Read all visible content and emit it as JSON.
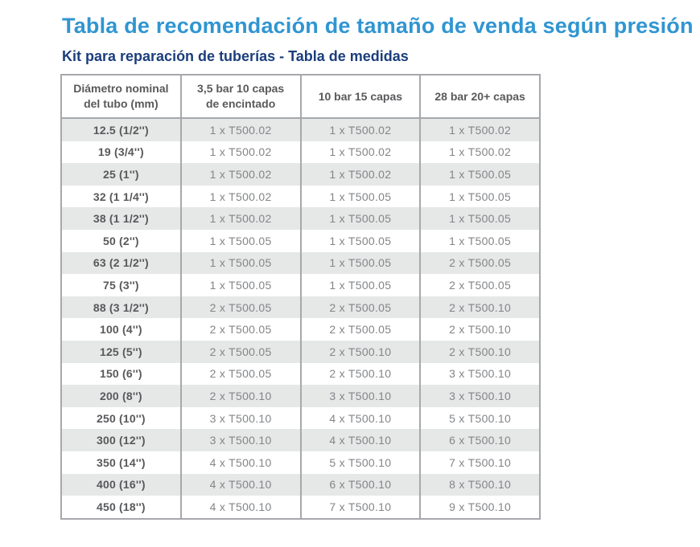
{
  "page": {
    "title": "Tabla de recomendación de tamaño de venda según presión",
    "subtitle": "Kit para reparación de tuberías - Tabla de medidas"
  },
  "colors": {
    "title": "#3095d2",
    "subtitle": "#1b3e7c",
    "header_text": "#58595b",
    "row_label_text": "#58595b",
    "cell_text": "#838588",
    "stripe": "#e6e7e7",
    "border": "#a6a8ab"
  },
  "table": {
    "columns": [
      "Diámetro nominal\ndel tubo (mm)",
      "3,5 bar  10 capas\nde encintado",
      "10 bar  15 capas",
      "28 bar 20+ capas"
    ],
    "rows": [
      {
        "label": "12.5 (1/2'')",
        "values": [
          "1 x T500.02",
          "1 x T500.02",
          "1 x T500.02"
        ]
      },
      {
        "label": "19 (3/4'')",
        "values": [
          "1 x T500.02",
          "1 x T500.02",
          "1 x T500.02"
        ]
      },
      {
        "label": "25 (1'')",
        "values": [
          "1 x T500.02",
          "1 x T500.02",
          "1 x T500.05"
        ]
      },
      {
        "label": "32 (1 1/4'')",
        "values": [
          "1 x T500.02",
          "1 x T500.05",
          "1 x T500.05"
        ]
      },
      {
        "label": "38 (1 1/2'')",
        "values": [
          "1 x T500.02",
          "1 x T500.05",
          "1 x T500.05"
        ]
      },
      {
        "label": "50 (2'')",
        "values": [
          "1 x T500.05",
          "1 x T500.05",
          "1 x T500.05"
        ]
      },
      {
        "label": "63 (2 1/2'')",
        "values": [
          "1 x T500.05",
          "1 x T500.05",
          "2 x T500.05"
        ]
      },
      {
        "label": "75 (3'')",
        "values": [
          "1 x T500.05",
          "1 x T500.05",
          "2 x T500.05"
        ]
      },
      {
        "label": "88 (3 1/2'')",
        "values": [
          "2 x T500.05",
          "2 x T500.05",
          "2 x T500.10"
        ]
      },
      {
        "label": "100 (4'')",
        "values": [
          "2 x T500.05",
          "2 x T500.05",
          "2 x T500.10"
        ]
      },
      {
        "label": "125 (5'')",
        "values": [
          "2 x T500.05",
          "2 x T500.10",
          "2 x T500.10"
        ]
      },
      {
        "label": "150 (6'')",
        "values": [
          "2 x T500.05",
          "2 x T500.10",
          "3 x T500.10"
        ]
      },
      {
        "label": "200 (8'')",
        "values": [
          "2 x T500.10",
          "3 x T500.10",
          "3 x T500.10"
        ]
      },
      {
        "label": "250 (10'')",
        "values": [
          "3 x T500.10",
          "4 x T500.10",
          "5 x T500.10"
        ]
      },
      {
        "label": "300 (12'')",
        "values": [
          "3 x T500.10",
          "4 x T500.10",
          "6 x T500.10"
        ]
      },
      {
        "label": "350 (14'')",
        "values": [
          "4 x T500.10",
          "5 x T500.10",
          "7 x T500.10"
        ]
      },
      {
        "label": "400 (16'')",
        "values": [
          "4 x T500.10",
          "6 x T500.10",
          "8 x T500.10"
        ]
      },
      {
        "label": "450 (18'')",
        "values": [
          "4 x T500.10",
          "7 x T500.10",
          "9 x T500.10"
        ]
      }
    ]
  }
}
